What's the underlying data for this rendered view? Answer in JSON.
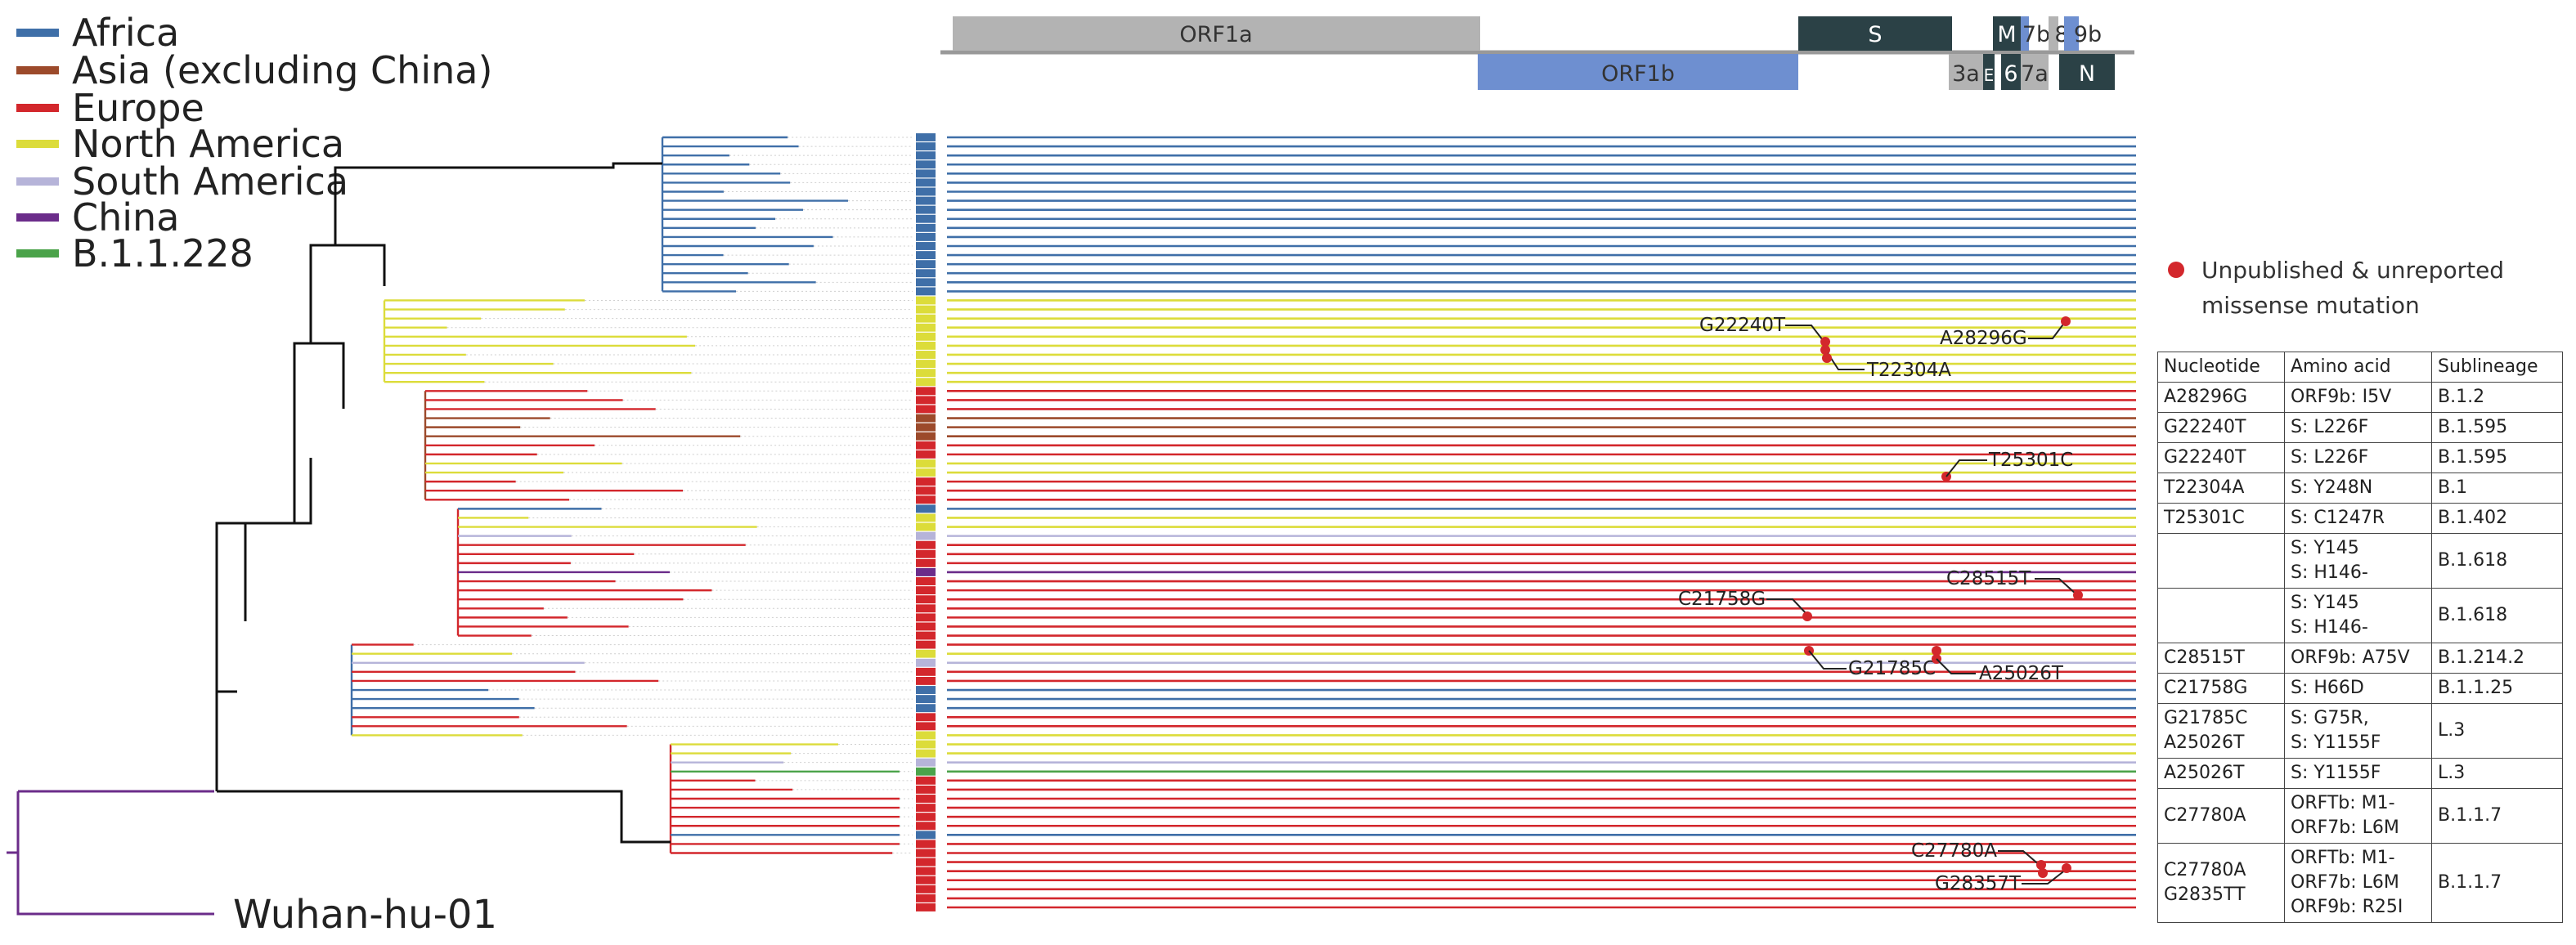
{
  "legend": [
    {
      "label": "Africa",
      "color": "#3f6fa8"
    },
    {
      "label": "Asia (excluding China)",
      "color": "#9c4a2b"
    },
    {
      "label": "Europe",
      "color": "#d3272c"
    },
    {
      "label": "North America",
      "color": "#dcdc3a"
    },
    {
      "label": "South America",
      "color": "#b6b4d9"
    },
    {
      "label": "China",
      "color": "#6b2c8a"
    },
    {
      "label": "B.1.1.228",
      "color": "#4ba34a"
    }
  ],
  "genome": {
    "genes": [
      "ORF1a",
      "ORF1b",
      "S",
      "3a",
      "E",
      "M",
      "6",
      "7a",
      "7b",
      "8",
      "9b",
      "N"
    ]
  },
  "root_label": "Wuhan-hu-01",
  "key": {
    "label": "Unpublished & unreported\nmissense mutation",
    "color": "#d3272c"
  },
  "mutation_labels": [
    "G22240T",
    "A28296G",
    "T22304A",
    "T25301C",
    "C28515T",
    "C21758G",
    "G21785C",
    "A25026T",
    "C27780A",
    "G28357T"
  ],
  "table": {
    "headers": [
      "Nucleotide",
      "Amino acid",
      "Sublineage"
    ],
    "rows": [
      [
        "A28296G",
        "ORF9b: I5V",
        "B.1.2"
      ],
      [
        "G22240T",
        "S: L226F",
        "B.1.595"
      ],
      [
        "G22240T",
        "S: L226F",
        "B.1.595"
      ],
      [
        "T22304A",
        "S: Y248N",
        "B.1"
      ],
      [
        "T25301C",
        "S: C1247R",
        "B.1.402"
      ],
      [
        "",
        "S: Y145\nS: H146-",
        "B.1.618"
      ],
      [
        "",
        "S: Y145\nS: H146-",
        "B.1.618"
      ],
      [
        "C28515T",
        "ORF9b: A75V",
        "B.1.214.2"
      ],
      [
        "C21758G",
        "S: H66D",
        "B.1.1.25"
      ],
      [
        "G21785C\nA25026T",
        "S: G75R,\nS: Y1155F",
        "L.3"
      ],
      [
        "A25026T",
        "S: Y1155F",
        "L.3"
      ],
      [
        "C27780A",
        "ORFTb: M1-\nORF7b: L6M",
        "B.1.1.7"
      ],
      [
        "C27780A\nG2835TT",
        "ORFTb: M1-\nORF7b: L6M\nORF9b: R25I",
        "B.1.1.7"
      ]
    ]
  }
}
